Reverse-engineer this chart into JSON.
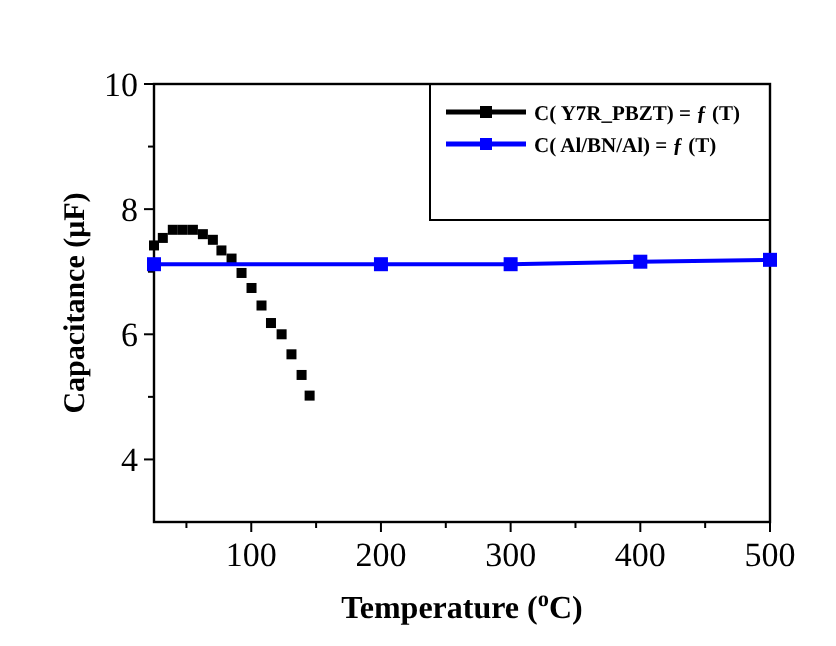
{
  "chart_data": {
    "type": "line",
    "xlabel": "Temperature ($^{o}$C)",
    "ylabel": "Capacitance (μF)",
    "xlim": [
      25,
      500
    ],
    "xticks": [
      {
        "value": 50,
        "label": null
      },
      100,
      {
        "value": 150,
        "label": null
      },
      200,
      {
        "value": 250,
        "label": null
      },
      300,
      {
        "value": 350,
        "label": null
      },
      400,
      {
        "value": 450,
        "label": null
      },
      500
    ],
    "ylim": [
      3,
      10
    ],
    "yticks": [
      4,
      {
        "value": 5,
        "label": null
      },
      6,
      {
        "value": 7,
        "label": null
      },
      8,
      {
        "value": 9,
        "label": null
      },
      10
    ],
    "legend": "top right",
    "marker": "square",
    "grid": false,
    "series": [
      {
        "name": "C( Y7R_PBZT) = ƒ (T)",
        "type": "scatter",
        "color": "#000000",
        "x": [
          25,
          31.8,
          39.5,
          47.2,
          55,
          62.7,
          70.4,
          77,
          84.8,
          92.5,
          100.2,
          107.9,
          115.2,
          123.4,
          131,
          138.8,
          145
        ],
        "values": [
          7.42,
          7.54,
          7.67,
          7.67,
          7.67,
          7.6,
          7.51,
          7.34,
          7.21,
          6.98,
          6.74,
          6.46,
          6.18,
          6.0,
          5.68,
          5.35,
          5.02
        ]
      },
      {
        "name": "C( Al/BN/Al) = ƒ (T)",
        "color": "#0000ff",
        "x": [
          25,
          200,
          300,
          400,
          500
        ],
        "values": [
          7.12,
          7.12,
          7.12,
          7.16,
          7.19
        ]
      }
    ]
  }
}
